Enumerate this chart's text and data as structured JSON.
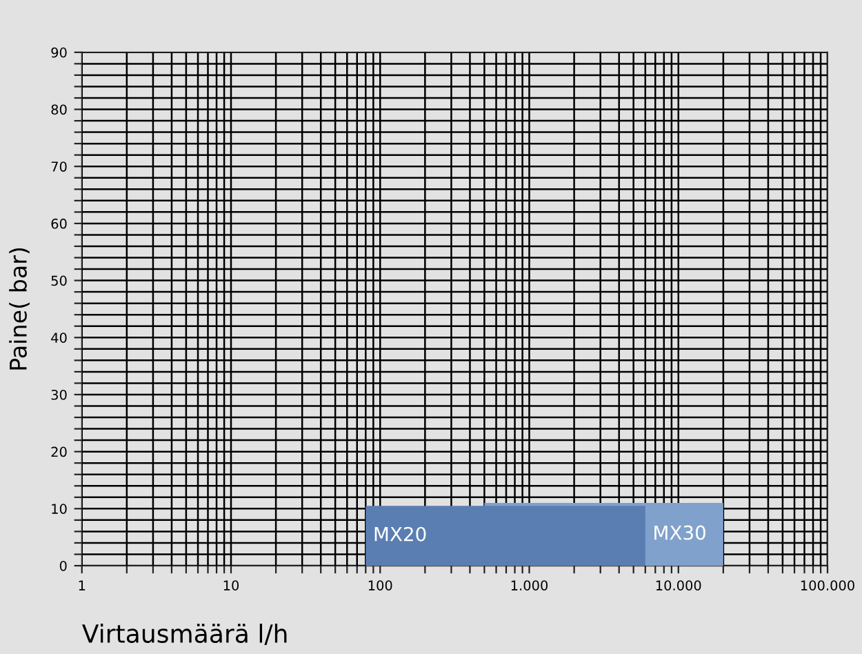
{
  "chart_data": {
    "type": "area",
    "xlabel": "Virtausmäärä l/h",
    "ylabel": "Paine( bar)",
    "log": "x",
    "grid": true,
    "xlim": [
      1,
      100000
    ],
    "ylim": [
      0,
      90
    ],
    "xticks": [
      1,
      {
        "value": 2,
        "label": null
      },
      {
        "value": 3,
        "label": null
      },
      {
        "value": 4,
        "label": null
      },
      {
        "value": 5,
        "label": null
      },
      {
        "value": 6,
        "label": null
      },
      {
        "value": 7,
        "label": null
      },
      {
        "value": 8,
        "label": null
      },
      {
        "value": 9,
        "label": null
      },
      10,
      {
        "value": 20,
        "label": null
      },
      {
        "value": 30,
        "label": null
      },
      {
        "value": 40,
        "label": null
      },
      {
        "value": 50,
        "label": null
      },
      {
        "value": 60,
        "label": null
      },
      {
        "value": 70,
        "label": null
      },
      {
        "value": 80,
        "label": null
      },
      {
        "value": 90,
        "label": null
      },
      100,
      {
        "value": 200,
        "label": null
      },
      {
        "value": 300,
        "label": null
      },
      {
        "value": 400,
        "label": null
      },
      {
        "value": 500,
        "label": null
      },
      {
        "value": 600,
        "label": null
      },
      {
        "value": 700,
        "label": null
      },
      {
        "value": 800,
        "label": null
      },
      {
        "value": 900,
        "label": null
      },
      {
        "value": 1000,
        "label": "1.000"
      },
      {
        "value": 2000,
        "label": null
      },
      {
        "value": 3000,
        "label": null
      },
      {
        "value": 4000,
        "label": null
      },
      {
        "value": 5000,
        "label": null
      },
      {
        "value": 6000,
        "label": null
      },
      {
        "value": 7000,
        "label": null
      },
      {
        "value": 8000,
        "label": null
      },
      {
        "value": 9000,
        "label": null
      },
      {
        "value": 10000,
        "label": "10.000"
      },
      {
        "value": 20000,
        "label": null
      },
      {
        "value": 30000,
        "label": null
      },
      {
        "value": 40000,
        "label": null
      },
      {
        "value": 50000,
        "label": null
      },
      {
        "value": 60000,
        "label": null
      },
      {
        "value": 70000,
        "label": null
      },
      {
        "value": 80000,
        "label": null
      },
      {
        "value": 90000,
        "label": null
      },
      {
        "value": 100000,
        "label": "100.000"
      }
    ],
    "yticks": [
      0,
      {
        "value": 2,
        "label": null
      },
      {
        "value": 4,
        "label": null
      },
      {
        "value": 6,
        "label": null
      },
      {
        "value": 8,
        "label": null
      },
      10,
      {
        "value": 12,
        "label": null
      },
      {
        "value": 14,
        "label": null
      },
      {
        "value": 16,
        "label": null
      },
      {
        "value": 18,
        "label": null
      },
      20,
      {
        "value": 22,
        "label": null
      },
      {
        "value": 24,
        "label": null
      },
      {
        "value": 26,
        "label": null
      },
      {
        "value": 28,
        "label": null
      },
      30,
      {
        "value": 32,
        "label": null
      },
      {
        "value": 34,
        "label": null
      },
      {
        "value": 36,
        "label": null
      },
      {
        "value": 38,
        "label": null
      },
      40,
      {
        "value": 42,
        "label": null
      },
      {
        "value": 44,
        "label": null
      },
      {
        "value": 46,
        "label": null
      },
      {
        "value": 48,
        "label": null
      },
      50,
      {
        "value": 52,
        "label": null
      },
      {
        "value": 54,
        "label": null
      },
      {
        "value": 56,
        "label": null
      },
      {
        "value": 58,
        "label": null
      },
      60,
      {
        "value": 62,
        "label": null
      },
      {
        "value": 64,
        "label": null
      },
      {
        "value": 66,
        "label": null
      },
      {
        "value": 68,
        "label": null
      },
      70,
      {
        "value": 72,
        "label": null
      },
      {
        "value": 74,
        "label": null
      },
      {
        "value": 76,
        "label": null
      },
      {
        "value": 78,
        "label": null
      },
      80,
      {
        "value": 82,
        "label": null
      },
      {
        "value": 84,
        "label": null
      },
      {
        "value": 86,
        "label": null
      },
      {
        "value": 88,
        "label": null
      },
      90
    ],
    "series": [
      {
        "name": "MX30",
        "color": "#7fa1cb",
        "x": [
          500,
          20000
        ],
        "values": [
          11,
          11
        ]
      },
      {
        "name": "MX20",
        "color": "#5a7eb2",
        "x": [
          80,
          6000
        ],
        "values": [
          10.5,
          10.5
        ]
      }
    ]
  }
}
